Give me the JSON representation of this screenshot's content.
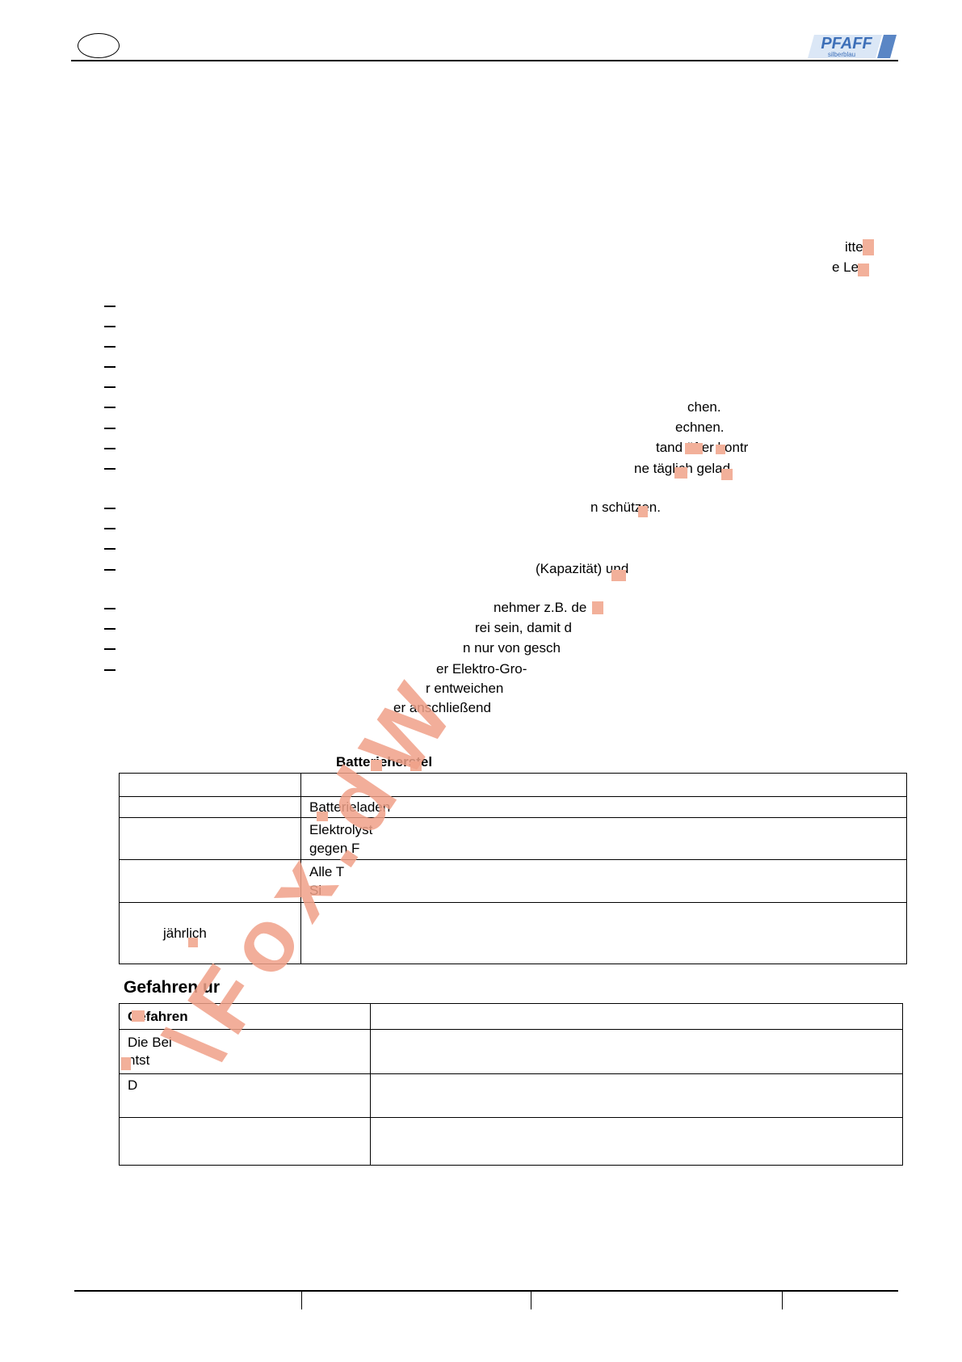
{
  "header": {
    "logo_top": "PFAFF",
    "logo_bottom": "silberblau"
  },
  "intro": {
    "line1_end": "itte",
    "line2_end": "e Le-"
  },
  "list_fragments": [
    "chen.",
    "echnen.",
    "tand öfter kontr",
    "ne täglich gelad",
    "n schützen.",
    "(Kapazität) und",
    "nehmer z.B. de",
    "rei sein, damit d",
    "n nur von gesch",
    "er Elektro-Gro-",
    "r entweichen",
    "er anschließend"
  ],
  "table1": {
    "caption": "Batterieherstel",
    "row2": "Batterieladen",
    "row3_a": "Elektrolyst",
    "row3_b": "gegen F",
    "row4_a": "Alle T",
    "row4_b": "Si",
    "row5_left": "jährlich"
  },
  "hazards": {
    "title": "Gefahren ur",
    "header": "Gefahren",
    "row1_a": "Die Bei",
    "row1_b": "ntst",
    "row2": "D"
  }
}
